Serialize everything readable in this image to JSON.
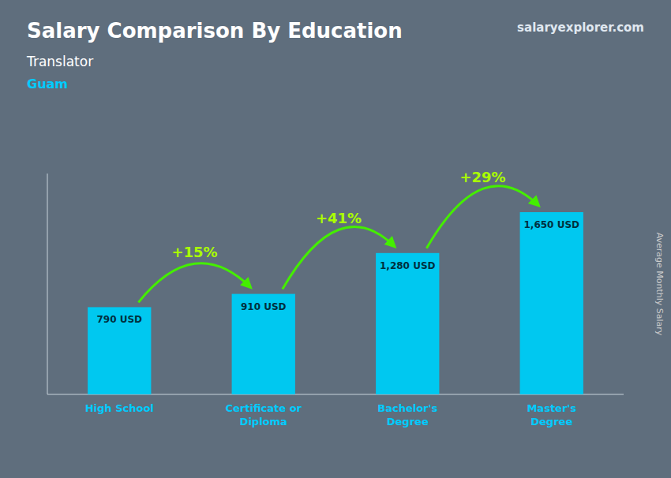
{
  "chart_data": {
    "type": "bar",
    "title": "Salary Comparison By Education",
    "subtitle": "Translator",
    "location": "Guam",
    "source": "salaryexplorer.com",
    "ylabel": "Average Monthly Salary",
    "categories": [
      "High School",
      "Certificate or\nDiploma",
      "Bachelor's\nDegree",
      "Master's\nDegree"
    ],
    "values": [
      790,
      910,
      1280,
      1650
    ],
    "value_labels": [
      "790 USD",
      "910 USD",
      "1,280 USD",
      "1,650 USD"
    ],
    "data_labels": true,
    "annotations": [
      "+15%",
      "+41%",
      "+29%"
    ],
    "color": "#00c8f0",
    "ylim": [
      0,
      2000
    ],
    "tick_labels": "x",
    "grid": false
  }
}
